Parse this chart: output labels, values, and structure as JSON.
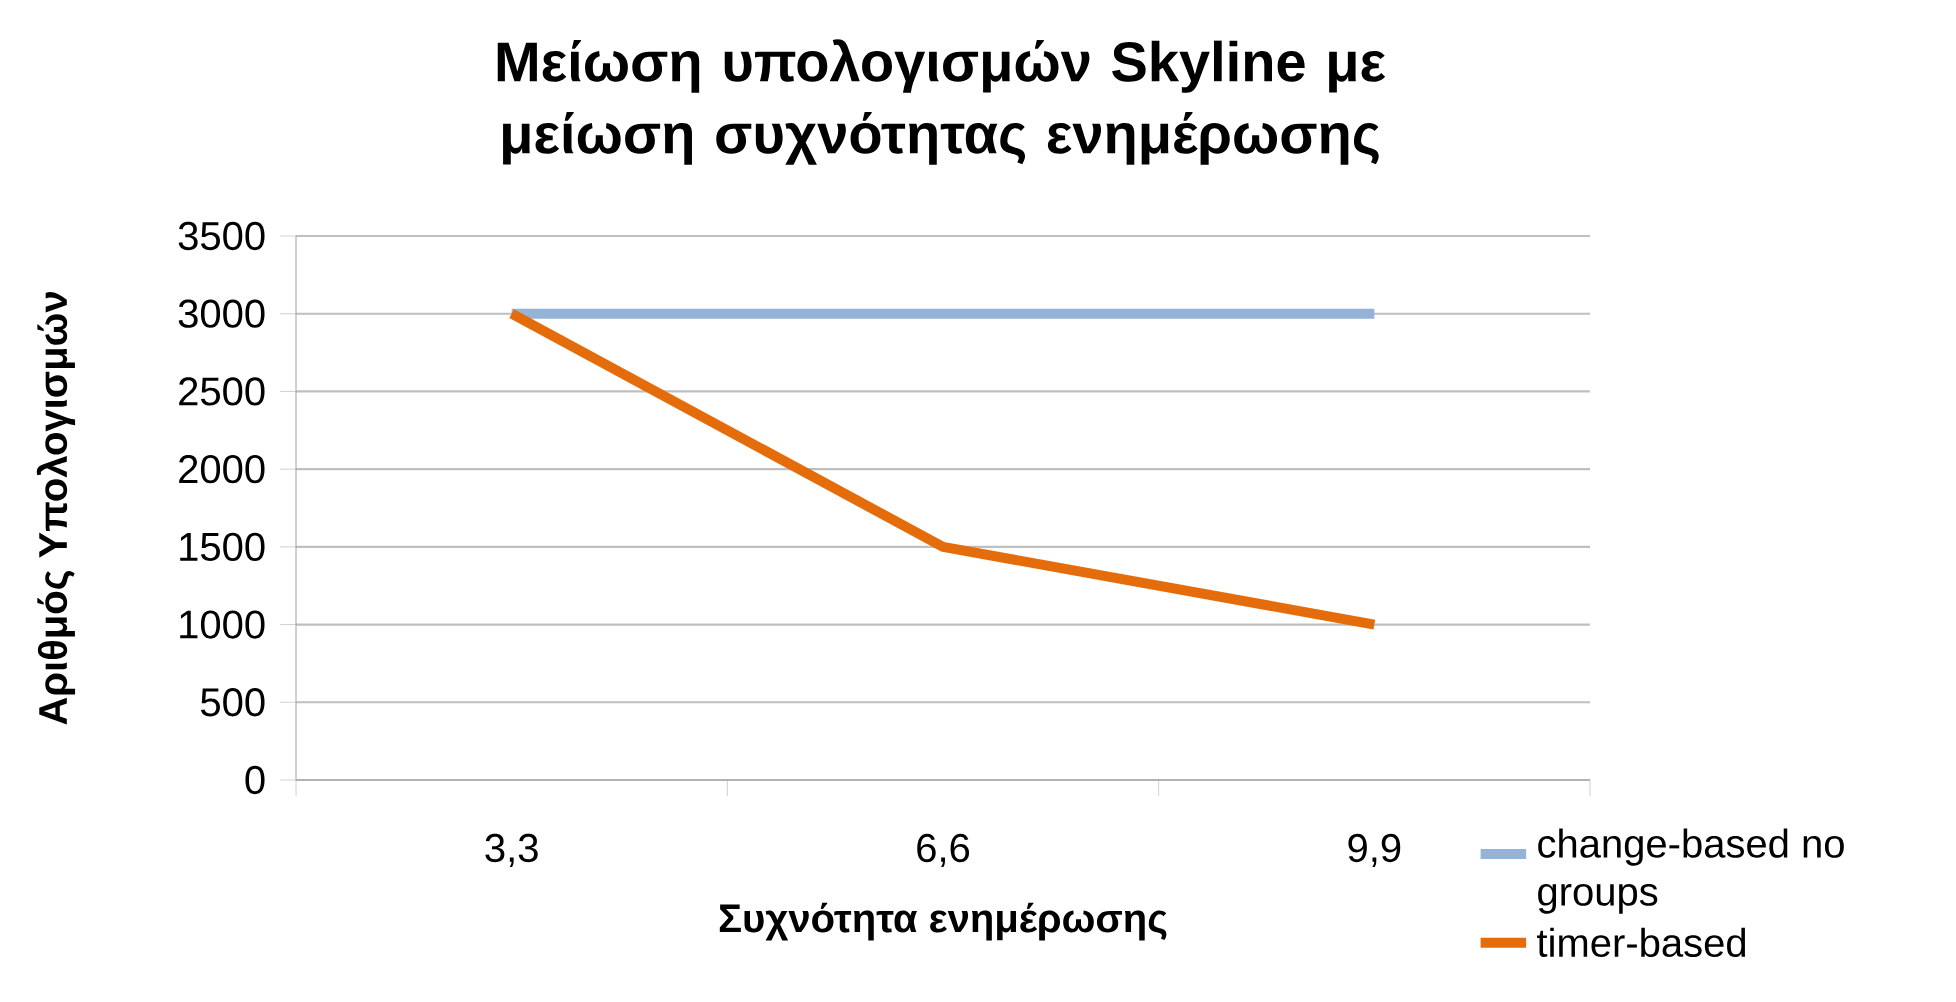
{
  "chart_data": {
    "type": "line",
    "title": "Μείωση υπολογισμών Skyline με μείωση συχνότητας ενημέρωσης",
    "xlabel": "Συχνότητα ενημέρωσης",
    "ylabel": "Αριθμός Υπολογισμών",
    "categories": [
      "3,3",
      "6,6",
      "9,9"
    ],
    "series": [
      {
        "name": "change-based no groups",
        "color": "#95b3d7",
        "values": [
          3000,
          3000,
          3000
        ]
      },
      {
        "name": "timer-based",
        "color": "#e46c0a",
        "values": [
          3000,
          1500,
          1000
        ]
      }
    ],
    "ylim": [
      0,
      3500
    ],
    "yticks": [
      0,
      500,
      1000,
      1500,
      2000,
      2500,
      3000,
      3500
    ],
    "grid": "y",
    "legend": "right"
  }
}
